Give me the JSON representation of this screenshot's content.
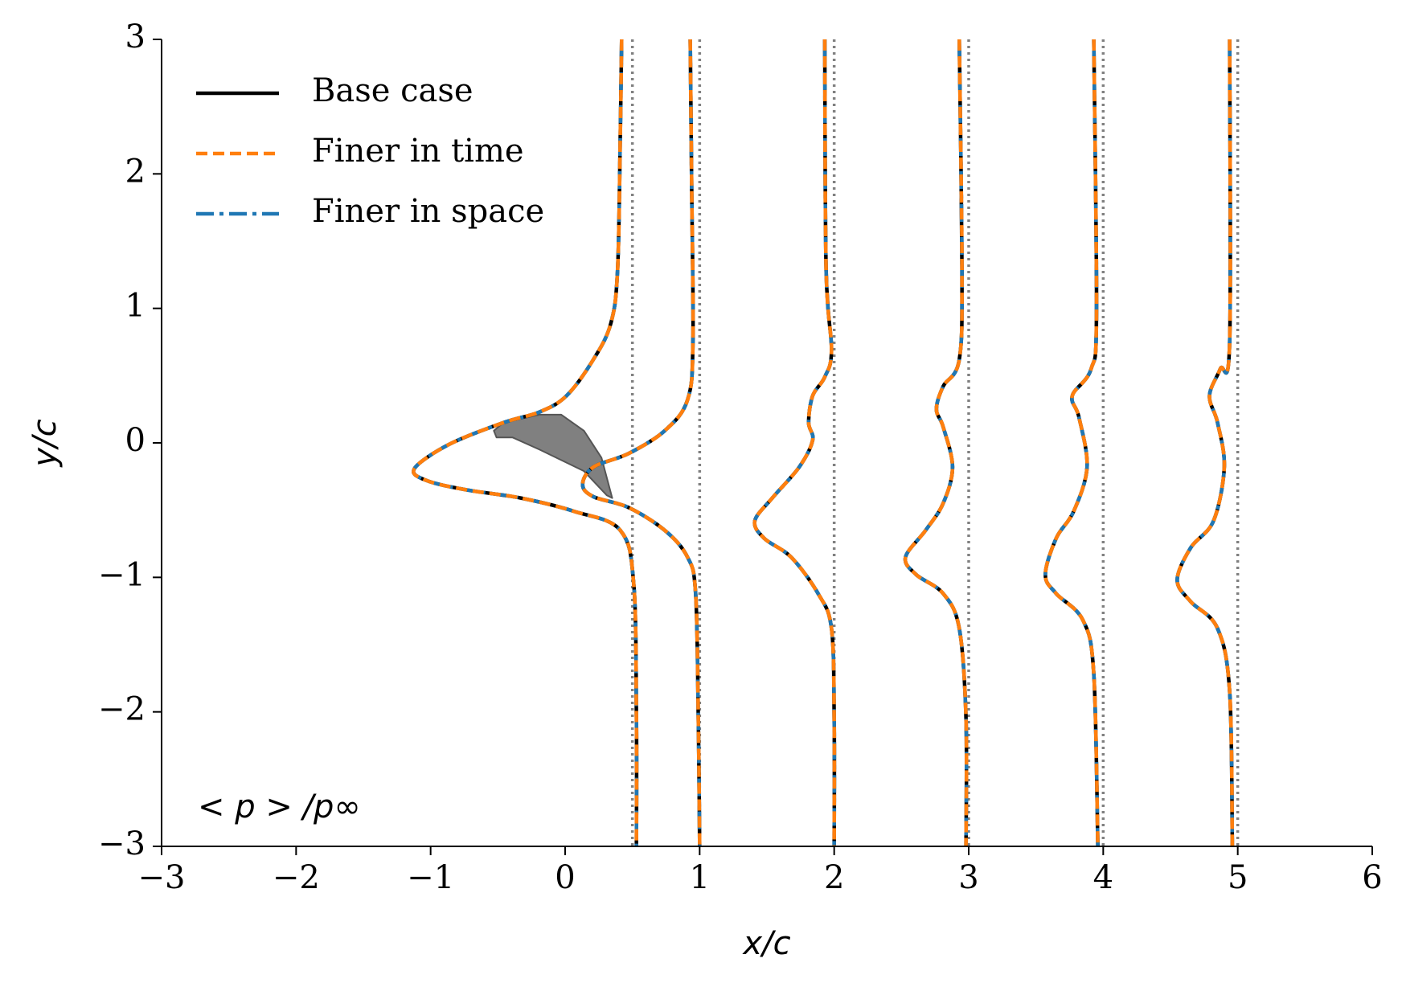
{
  "chart_data": {
    "type": "line",
    "xlabel": "x/c",
    "ylabel": "y/c",
    "annotation": "< p > /p∞",
    "xlim": [
      -3,
      6
    ],
    "ylim": [
      -3,
      3
    ],
    "xticks": [
      {
        "value": -3,
        "label": "−3"
      },
      {
        "value": -2,
        "label": "−2"
      },
      {
        "value": -1,
        "label": "−1"
      },
      0,
      1,
      2,
      3,
      4,
      5,
      6
    ],
    "yticks": [
      {
        "value": -3,
        "label": "−3"
      },
      {
        "value": -2,
        "label": "−2"
      },
      {
        "value": -1,
        "label": "−1"
      },
      0,
      1,
      2,
      3
    ],
    "legend": "upper-left",
    "stations": [
      0.5,
      1,
      2,
      3,
      4,
      5
    ],
    "station_color": "#808080",
    "airfoil": {
      "color": "#808080",
      "x": [
        -0.53,
        -0.46,
        -0.19,
        -0.03,
        0.14,
        0.27,
        0.35,
        0.31,
        0.14,
        -0.19,
        -0.39,
        -0.51
      ],
      "y": [
        0.09,
        0.15,
        0.21,
        0.21,
        0.09,
        -0.11,
        -0.41,
        -0.39,
        -0.21,
        -0.05,
        0.04,
        0.04
      ]
    },
    "series": [
      {
        "name": "Base case",
        "color": "#000000",
        "dash": "solid",
        "x": [
          0.42,
          0.41,
          0.39,
          0.34,
          0.21,
          0.01,
          -0.19,
          -0.46,
          -0.86,
          -1.12,
          -1.03,
          -0.73,
          -0.33,
          0.07,
          0.41,
          0.51,
          0.53,
          0.53,
          null,
          0.93,
          0.94,
          0.95,
          0.91,
          0.74,
          0.47,
          0.21,
          0.13,
          0.21,
          0.47,
          0.74,
          0.91,
          0.97,
          0.99,
          1.0,
          null,
          1.93,
          1.94,
          1.98,
          1.93,
          1.84,
          1.81,
          1.84,
          1.74,
          1.54,
          1.41,
          1.48,
          1.68,
          1.88,
          1.98,
          2.0,
          2.0,
          null,
          2.93,
          2.95,
          2.93,
          2.81,
          2.76,
          2.81,
          2.88,
          2.81,
          2.68,
          2.53,
          2.61,
          2.81,
          2.93,
          2.98,
          2.98,
          null,
          3.93,
          3.95,
          3.91,
          3.77,
          3.82,
          3.88,
          3.78,
          3.65,
          3.57,
          3.65,
          3.85,
          3.93,
          3.96,
          null,
          4.94,
          4.94,
          4.87,
          4.79,
          4.85,
          4.9,
          4.82,
          4.65,
          4.55,
          4.65,
          4.85,
          4.94,
          4.96
        ],
        "values": [
          3,
          2.29,
          1.29,
          0.89,
          0.62,
          0.35,
          0.23,
          0.15,
          -0.01,
          -0.19,
          -0.28,
          -0.35,
          -0.41,
          -0.51,
          -0.65,
          -1.05,
          -2.05,
          -3,
          null,
          3,
          1.96,
          0.75,
          0.32,
          0.09,
          -0.08,
          -0.18,
          -0.31,
          -0.4,
          -0.48,
          -0.65,
          -0.85,
          -1.12,
          -2.05,
          -3,
          null,
          3,
          1.29,
          0.69,
          0.49,
          0.35,
          0.15,
          0.02,
          -0.18,
          -0.41,
          -0.58,
          -0.71,
          -0.85,
          -1.12,
          -1.38,
          -2.05,
          -3,
          null,
          3,
          1.29,
          0.62,
          0.42,
          0.25,
          0.12,
          -0.18,
          -0.45,
          -0.65,
          -0.85,
          -0.98,
          -1.12,
          -1.38,
          -2.05,
          -3,
          null,
          3,
          0.96,
          0.55,
          0.35,
          0.19,
          -0.18,
          -0.51,
          -0.71,
          -0.98,
          -1.12,
          -1.32,
          -1.72,
          -3,
          null,
          3,
          0.75,
          0.55,
          0.35,
          0.15,
          -0.18,
          -0.58,
          -0.78,
          -1.02,
          -1.18,
          -1.38,
          -1.85,
          -3
        ]
      },
      {
        "name": "Finer in space",
        "color": "#1f77b4",
        "dash": "dashdot",
        "x": [
          0.42,
          0.41,
          0.39,
          0.34,
          0.21,
          0.01,
          -0.19,
          -0.46,
          -0.86,
          -1.12,
          -1.03,
          -0.73,
          -0.33,
          0.07,
          0.41,
          0.51,
          0.53,
          0.53,
          null,
          0.93,
          0.94,
          0.95,
          0.91,
          0.74,
          0.47,
          0.21,
          0.13,
          0.21,
          0.47,
          0.74,
          0.91,
          0.97,
          0.99,
          1.0,
          null,
          1.93,
          1.94,
          1.98,
          1.93,
          1.84,
          1.81,
          1.84,
          1.74,
          1.54,
          1.41,
          1.48,
          1.68,
          1.88,
          1.98,
          2.0,
          2.0,
          null,
          2.93,
          2.95,
          2.93,
          2.81,
          2.76,
          2.81,
          2.88,
          2.81,
          2.68,
          2.53,
          2.61,
          2.81,
          2.93,
          2.98,
          2.98,
          null,
          3.93,
          3.95,
          3.91,
          3.77,
          3.82,
          3.88,
          3.78,
          3.65,
          3.57,
          3.65,
          3.85,
          3.93,
          3.96,
          null,
          4.94,
          4.94,
          4.87,
          4.79,
          4.85,
          4.9,
          4.82,
          4.65,
          4.55,
          4.65,
          4.85,
          4.94,
          4.96
        ],
        "values": [
          3,
          2.29,
          1.29,
          0.89,
          0.62,
          0.35,
          0.23,
          0.15,
          -0.01,
          -0.19,
          -0.28,
          -0.35,
          -0.41,
          -0.51,
          -0.65,
          -1.05,
          -2.05,
          -3,
          null,
          3,
          1.96,
          0.75,
          0.32,
          0.09,
          -0.08,
          -0.18,
          -0.31,
          -0.4,
          -0.48,
          -0.65,
          -0.85,
          -1.12,
          -2.05,
          -3,
          null,
          3,
          1.29,
          0.69,
          0.49,
          0.35,
          0.15,
          0.02,
          -0.18,
          -0.41,
          -0.58,
          -0.71,
          -0.85,
          -1.12,
          -1.38,
          -2.05,
          -3,
          null,
          3,
          1.29,
          0.62,
          0.42,
          0.25,
          0.12,
          -0.18,
          -0.45,
          -0.65,
          -0.85,
          -0.98,
          -1.12,
          -1.38,
          -2.05,
          -3,
          null,
          3,
          0.96,
          0.55,
          0.35,
          0.19,
          -0.18,
          -0.51,
          -0.71,
          -0.98,
          -1.12,
          -1.32,
          -1.72,
          -3,
          null,
          3,
          0.75,
          0.55,
          0.35,
          0.15,
          -0.18,
          -0.58,
          -0.78,
          -1.02,
          -1.18,
          -1.38,
          -1.85,
          -3
        ]
      },
      {
        "name": "Finer in time",
        "color": "#ff7f0e",
        "dash": "dashed",
        "x": [
          0.42,
          0.41,
          0.39,
          0.34,
          0.21,
          0.01,
          -0.19,
          -0.46,
          -0.86,
          -1.12,
          -1.03,
          -0.73,
          -0.33,
          0.07,
          0.41,
          0.51,
          0.53,
          0.53,
          null,
          0.93,
          0.94,
          0.95,
          0.91,
          0.74,
          0.47,
          0.21,
          0.13,
          0.21,
          0.47,
          0.74,
          0.91,
          0.97,
          0.99,
          1.0,
          null,
          1.93,
          1.94,
          1.98,
          1.93,
          1.84,
          1.81,
          1.84,
          1.74,
          1.54,
          1.41,
          1.48,
          1.68,
          1.88,
          1.98,
          2.0,
          2.0,
          null,
          2.93,
          2.95,
          2.93,
          2.81,
          2.76,
          2.81,
          2.88,
          2.81,
          2.68,
          2.53,
          2.61,
          2.81,
          2.93,
          2.98,
          2.98,
          null,
          3.93,
          3.95,
          3.91,
          3.77,
          3.82,
          3.88,
          3.78,
          3.65,
          3.57,
          3.65,
          3.85,
          3.93,
          3.96,
          null,
          4.94,
          4.94,
          4.87,
          4.79,
          4.85,
          4.9,
          4.82,
          4.65,
          4.55,
          4.65,
          4.85,
          4.94,
          4.96
        ],
        "values": [
          3,
          2.29,
          1.29,
          0.89,
          0.62,
          0.35,
          0.23,
          0.15,
          -0.01,
          -0.19,
          -0.28,
          -0.35,
          -0.41,
          -0.51,
          -0.65,
          -1.05,
          -2.05,
          -3,
          null,
          3,
          1.96,
          0.75,
          0.32,
          0.09,
          -0.08,
          -0.18,
          -0.31,
          -0.4,
          -0.48,
          -0.65,
          -0.85,
          -1.12,
          -2.05,
          -3,
          null,
          3,
          1.29,
          0.69,
          0.49,
          0.35,
          0.15,
          0.02,
          -0.18,
          -0.41,
          -0.58,
          -0.71,
          -0.85,
          -1.12,
          -1.38,
          -2.05,
          -3,
          null,
          3,
          1.29,
          0.62,
          0.42,
          0.25,
          0.12,
          -0.18,
          -0.45,
          -0.65,
          -0.85,
          -0.98,
          -1.12,
          -1.38,
          -2.05,
          -3,
          null,
          3,
          0.96,
          0.55,
          0.35,
          0.19,
          -0.18,
          -0.51,
          -0.71,
          -0.98,
          -1.12,
          -1.32,
          -1.72,
          -3,
          null,
          3,
          0.75,
          0.55,
          0.35,
          0.15,
          -0.18,
          -0.58,
          -0.78,
          -1.02,
          -1.18,
          -1.38,
          -1.85,
          -3
        ]
      }
    ]
  }
}
